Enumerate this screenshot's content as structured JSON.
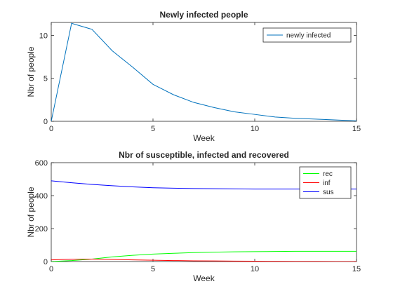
{
  "chart_data": [
    {
      "type": "line",
      "title": "Newly infected people",
      "xlabel": "Week",
      "ylabel": "Nbr of people",
      "xlim": [
        0,
        15
      ],
      "ylim": [
        0,
        11.5
      ],
      "xticks": [
        "0",
        "5",
        "10",
        "15"
      ],
      "yticks": [
        "0",
        "5",
        "10"
      ],
      "xtick_values": [
        0,
        5,
        10,
        15
      ],
      "ytick_values": [
        0,
        5,
        10
      ],
      "grid": false,
      "legend_position": "top-right",
      "x": [
        0,
        1,
        2,
        3,
        4,
        5,
        6,
        7,
        8,
        9,
        10,
        11,
        12,
        13,
        14,
        15
      ],
      "series": [
        {
          "name": "newly infected",
          "color": "#0072BD",
          "values": [
            0,
            11.4,
            10.7,
            8.2,
            6.3,
            4.3,
            3.1,
            2.2,
            1.6,
            1.1,
            0.8,
            0.5,
            0.35,
            0.25,
            0.15,
            0.05
          ]
        }
      ]
    },
    {
      "type": "line",
      "title": "Nbr of susceptible, infected and recovered",
      "xlabel": "Week",
      "ylabel": "Nbr of people",
      "xlim": [
        0,
        15
      ],
      "ylim": [
        0,
        600
      ],
      "xticks": [
        "0",
        "5",
        "10",
        "15"
      ],
      "yticks": [
        "0",
        "200",
        "400",
        "600"
      ],
      "xtick_values": [
        0,
        5,
        10,
        15
      ],
      "ytick_values": [
        0,
        200,
        400,
        600
      ],
      "grid": false,
      "legend_position": "top-right",
      "x": [
        0,
        1,
        2,
        3,
        4,
        5,
        6,
        7,
        8,
        9,
        10,
        11,
        12,
        13,
        14,
        15
      ],
      "series": [
        {
          "name": "rec",
          "color": "#00FF00",
          "values": [
            0,
            6,
            15,
            28,
            38,
            45,
            50,
            54,
            57,
            59,
            60,
            61,
            62,
            62,
            62,
            62
          ]
        },
        {
          "name": "inf",
          "color": "#FF0000",
          "values": [
            10,
            14,
            15,
            13,
            10,
            8,
            6,
            4.5,
            3.5,
            2.5,
            2,
            1.5,
            1,
            1,
            0.5,
            0.5
          ]
        },
        {
          "name": "sus",
          "color": "#0000FF",
          "values": [
            490,
            478,
            468,
            460,
            453,
            448,
            445,
            443,
            442,
            441,
            440,
            440,
            440,
            440,
            440,
            440
          ]
        }
      ]
    }
  ]
}
